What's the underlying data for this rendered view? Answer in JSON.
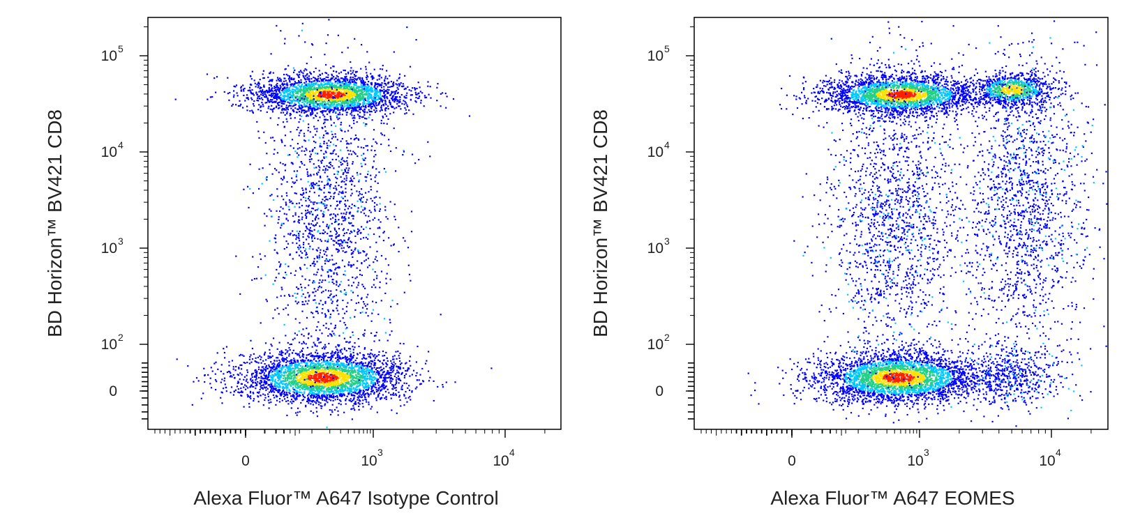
{
  "chart_data": [
    {
      "type": "scatter",
      "subtype": "flow-cytometry-pseudocolor-density",
      "xlabel": "Alexa Fluor™ A647 Isotype Control",
      "ylabel": "BD Horizon™ BV421 CD8",
      "x_scale": "biexponential",
      "y_scale": "biexponential",
      "x_ticks": [
        {
          "value": 0,
          "label": "0"
        },
        {
          "value": 1000,
          "label": "10",
          "exp": "3"
        },
        {
          "value": 10000,
          "label": "10",
          "exp": "4"
        }
      ],
      "y_ticks": [
        {
          "value": 0,
          "label": "0"
        },
        {
          "value": 100,
          "label": "10",
          "exp": "2"
        },
        {
          "value": 1000,
          "label": "10",
          "exp": "3"
        },
        {
          "value": 10000,
          "label": "10",
          "exp": "4"
        },
        {
          "value": 100000,
          "label": "10",
          "exp": "5"
        }
      ],
      "xlim": [
        -180,
        25000
      ],
      "ylim": [
        -40,
        250000
      ],
      "grid": false,
      "color_scale": [
        "#0000ff",
        "#00c8ff",
        "#22d088",
        "#ffe000",
        "#ff2000"
      ],
      "populations": [
        {
          "x_center": 200,
          "y_center": 40000,
          "density": "high"
        },
        {
          "x_center": 150,
          "y_center": 30,
          "density": "high"
        },
        {
          "x_center": 200,
          "y_center": 2000,
          "density": "low"
        }
      ]
    },
    {
      "type": "scatter",
      "subtype": "flow-cytometry-pseudocolor-density",
      "xlabel": "Alexa Fluor™ A647 EOMES",
      "ylabel": "BD Horizon™ BV421 CD8",
      "x_scale": "biexponential",
      "y_scale": "biexponential",
      "x_ticks": [
        {
          "value": 0,
          "label": "0"
        },
        {
          "value": 1000,
          "label": "10",
          "exp": "3"
        },
        {
          "value": 10000,
          "label": "10",
          "exp": "4"
        }
      ],
      "y_ticks": [
        {
          "value": 0,
          "label": "0"
        },
        {
          "value": 100,
          "label": "10",
          "exp": "2"
        },
        {
          "value": 1000,
          "label": "10",
          "exp": "3"
        },
        {
          "value": 10000,
          "label": "10",
          "exp": "4"
        },
        {
          "value": 100000,
          "label": "10",
          "exp": "5"
        }
      ],
      "xlim": [
        -180,
        25000
      ],
      "ylim": [
        -40,
        250000
      ],
      "grid": false,
      "color_scale": [
        "#0000ff",
        "#00c8ff",
        "#22d088",
        "#ffe000",
        "#ff2000"
      ],
      "populations": [
        {
          "x_center": 500,
          "y_center": 40000,
          "density": "high"
        },
        {
          "x_center": 5000,
          "y_center": 45000,
          "density": "medium"
        },
        {
          "x_center": 450,
          "y_center": 30,
          "density": "high"
        },
        {
          "x_center": 5000,
          "y_center": 30,
          "density": "low"
        },
        {
          "x_center": 400,
          "y_center": 2000,
          "density": "low"
        },
        {
          "x_center": 6000,
          "y_center": 3000,
          "density": "low"
        }
      ]
    }
  ]
}
